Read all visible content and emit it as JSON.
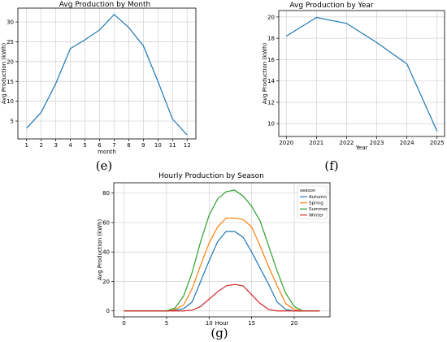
{
  "chart_data": [
    {
      "id": "e",
      "type": "line",
      "title": "Avg Production by Month",
      "xlabel": "month",
      "ylabel": "Avg Production (kWh)",
      "caption": "(e)",
      "x": [
        1,
        2,
        3,
        4,
        5,
        6,
        7,
        8,
        9,
        10,
        11,
        12
      ],
      "xticks": [
        "1",
        "2",
        "3",
        "4",
        "5",
        "6",
        "7",
        "8",
        "9",
        "10",
        "11",
        "12"
      ],
      "xlim": [
        0.4,
        12.6
      ],
      "ylim": [
        0.5,
        33.5
      ],
      "yticks": [
        5,
        10,
        15,
        20,
        25,
        30
      ],
      "grid": true,
      "series": [
        {
          "color": "#1f77b4",
          "values": [
            3.2,
            7.2,
            14.5,
            23.3,
            25.5,
            28.0,
            31.9,
            28.6,
            24.0,
            15.0,
            5.5,
            1.5
          ]
        }
      ]
    },
    {
      "id": "f",
      "type": "line",
      "title": "Avg Production by Year",
      "xlabel": "Year",
      "ylabel": "Avg Production (kWh)",
      "caption": "(f)",
      "x": [
        2020,
        2021,
        2022,
        2023,
        2024,
        2025
      ],
      "xticks": [
        "2020",
        "2021",
        "2022",
        "2023",
        "2024",
        "2025"
      ],
      "xlim": [
        2019.75,
        2025.25
      ],
      "ylim": [
        8.8,
        20.6
      ],
      "yticks": [
        10,
        12,
        14,
        16,
        18,
        20
      ],
      "grid": true,
      "series": [
        {
          "color": "#1f77b4",
          "values": [
            18.2,
            19.95,
            19.4,
            17.6,
            15.6,
            9.3
          ]
        }
      ]
    },
    {
      "id": "g",
      "type": "line",
      "title": "Hourly Production by Season",
      "xlabel": "Hour",
      "ylabel": "Avg Production (kWh)",
      "caption": "(g)",
      "x": [
        0,
        1,
        2,
        3,
        4,
        5,
        6,
        7,
        8,
        9,
        10,
        11,
        12,
        13,
        14,
        15,
        16,
        17,
        18,
        19,
        20,
        21,
        22,
        23
      ],
      "xticks": [
        "0",
        "5",
        "10",
        "15",
        "20"
      ],
      "xtickvals": [
        0,
        5,
        10,
        15,
        20
      ],
      "xlim": [
        -1.2,
        24.2
      ],
      "ylim": [
        -4,
        87
      ],
      "yticks": [
        0,
        20,
        40,
        60,
        80
      ],
      "grid": true,
      "legend": {
        "title": "season",
        "position": "top-right"
      },
      "series": [
        {
          "name": "Autumn",
          "color": "#1f77b4",
          "values": [
            0,
            0,
            0,
            0,
            0,
            0,
            0.5,
            1.5,
            6,
            20,
            34,
            47,
            54,
            54,
            50,
            40,
            29,
            18,
            6,
            1,
            0,
            0,
            0,
            0
          ]
        },
        {
          "name": "Spring",
          "color": "#ff7f0e",
          "values": [
            0,
            0,
            0,
            0,
            0,
            0,
            1,
            4,
            15,
            31,
            46,
            57,
            63,
            63,
            62,
            57,
            44,
            30,
            17,
            5,
            1,
            0,
            0,
            0
          ]
        },
        {
          "name": "Summer",
          "color": "#2ca02c",
          "values": [
            0,
            0,
            0,
            0,
            0,
            0,
            2,
            10,
            26,
            47,
            65,
            76,
            81,
            82,
            78,
            71,
            61,
            44,
            27,
            12,
            3,
            0,
            0,
            0
          ]
        },
        {
          "name": "Winter",
          "color": "#d62728",
          "values": [
            0,
            0,
            0,
            0,
            0,
            0,
            0,
            0,
            0.5,
            3,
            8,
            13,
            17,
            18,
            17,
            11,
            5,
            1,
            0,
            0,
            0,
            0,
            0,
            0
          ]
        }
      ]
    }
  ]
}
